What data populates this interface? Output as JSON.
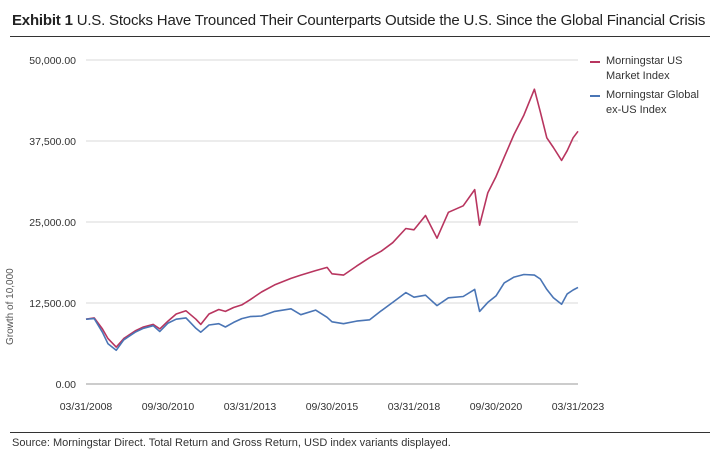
{
  "header": {
    "exhibit_label": "Exhibit 1",
    "title": "U.S. Stocks Have Trounced Their Counterparts Outside the U.S. Since the Global Financial Crisis"
  },
  "footer": {
    "source": "Source: Morningstar Direct. Total Return and Gross Return, USD index variants displayed."
  },
  "chart_data": {
    "type": "line",
    "title": "U.S. Stocks Have Trounced Their Counterparts Outside the U.S. Since the Global Financial Crisis",
    "xlabel": "",
    "ylabel": "Growth of 10,000",
    "ylim": [
      0,
      50000
    ],
    "y_ticks": [
      "50,000.00",
      "37,500.00",
      "25,000.00",
      "12,500.00",
      "0.00"
    ],
    "y_tick_values": [
      50000,
      37500,
      25000,
      12500,
      0
    ],
    "x_ticks": [
      "03/31/2008",
      "09/30/2010",
      "03/31/2013",
      "09/30/2015",
      "03/31/2018",
      "09/30/2020",
      "03/31/2023"
    ],
    "x_tick_values": [
      2008.25,
      2010.75,
      2013.25,
      2015.75,
      2018.25,
      2020.75,
      2023.25
    ],
    "xlim": [
      2008.25,
      2023.25
    ],
    "grid": "horizontal",
    "legend_position": "right",
    "colors": {
      "us": "#b8355f",
      "ex_us": "#4a75b5"
    },
    "series": [
      {
        "name": "Morningstar US Market Index",
        "color": "#b8355f",
        "points": [
          [
            2008.25,
            10000
          ],
          [
            2008.5,
            10200
          ],
          [
            2008.75,
            8500
          ],
          [
            2008.92,
            7000
          ],
          [
            2009.17,
            5700
          ],
          [
            2009.4,
            7000
          ],
          [
            2009.75,
            8200
          ],
          [
            2010.0,
            8800
          ],
          [
            2010.3,
            9200
          ],
          [
            2010.5,
            8500
          ],
          [
            2010.75,
            9700
          ],
          [
            2011.0,
            10800
          ],
          [
            2011.3,
            11300
          ],
          [
            2011.6,
            10000
          ],
          [
            2011.75,
            9200
          ],
          [
            2012.0,
            10800
          ],
          [
            2012.3,
            11500
          ],
          [
            2012.5,
            11200
          ],
          [
            2012.75,
            11800
          ],
          [
            2013.0,
            12200
          ],
          [
            2013.25,
            13000
          ],
          [
            2013.6,
            14200
          ],
          [
            2014.0,
            15300
          ],
          [
            2014.5,
            16300
          ],
          [
            2014.8,
            16800
          ],
          [
            2015.25,
            17500
          ],
          [
            2015.6,
            18000
          ],
          [
            2015.75,
            17000
          ],
          [
            2016.1,
            16800
          ],
          [
            2016.5,
            18200
          ],
          [
            2016.9,
            19500
          ],
          [
            2017.25,
            20500
          ],
          [
            2017.6,
            21800
          ],
          [
            2018.0,
            24000
          ],
          [
            2018.25,
            23800
          ],
          [
            2018.6,
            26000
          ],
          [
            2018.95,
            22500
          ],
          [
            2019.3,
            26500
          ],
          [
            2019.75,
            27500
          ],
          [
            2020.1,
            30000
          ],
          [
            2020.25,
            24500
          ],
          [
            2020.5,
            29500
          ],
          [
            2020.75,
            32000
          ],
          [
            2021.0,
            35000
          ],
          [
            2021.3,
            38500
          ],
          [
            2021.6,
            41500
          ],
          [
            2021.92,
            45500
          ],
          [
            2022.1,
            42000
          ],
          [
            2022.3,
            38000
          ],
          [
            2022.5,
            36500
          ],
          [
            2022.75,
            34500
          ],
          [
            2022.92,
            36000
          ],
          [
            2023.1,
            38000
          ],
          [
            2023.25,
            39000
          ]
        ]
      },
      {
        "name": "Morningstar Global ex-US Index",
        "color": "#4a75b5",
        "points": [
          [
            2008.25,
            10000
          ],
          [
            2008.5,
            10100
          ],
          [
            2008.75,
            8000
          ],
          [
            2008.92,
            6200
          ],
          [
            2009.17,
            5200
          ],
          [
            2009.4,
            6800
          ],
          [
            2009.75,
            8000
          ],
          [
            2010.0,
            8600
          ],
          [
            2010.3,
            9000
          ],
          [
            2010.5,
            8100
          ],
          [
            2010.75,
            9400
          ],
          [
            2011.0,
            10000
          ],
          [
            2011.3,
            10200
          ],
          [
            2011.6,
            8600
          ],
          [
            2011.75,
            8000
          ],
          [
            2012.0,
            9100
          ],
          [
            2012.3,
            9300
          ],
          [
            2012.5,
            8800
          ],
          [
            2012.75,
            9500
          ],
          [
            2013.0,
            10100
          ],
          [
            2013.25,
            10400
          ],
          [
            2013.6,
            10500
          ],
          [
            2014.0,
            11200
          ],
          [
            2014.5,
            11600
          ],
          [
            2014.8,
            10700
          ],
          [
            2015.25,
            11400
          ],
          [
            2015.6,
            10300
          ],
          [
            2015.75,
            9600
          ],
          [
            2016.1,
            9300
          ],
          [
            2016.5,
            9700
          ],
          [
            2016.9,
            9900
          ],
          [
            2017.25,
            11300
          ],
          [
            2017.6,
            12600
          ],
          [
            2018.0,
            14100
          ],
          [
            2018.25,
            13400
          ],
          [
            2018.6,
            13700
          ],
          [
            2018.95,
            12100
          ],
          [
            2019.3,
            13300
          ],
          [
            2019.75,
            13500
          ],
          [
            2020.1,
            14600
          ],
          [
            2020.25,
            11200
          ],
          [
            2020.5,
            12600
          ],
          [
            2020.75,
            13600
          ],
          [
            2021.0,
            15600
          ],
          [
            2021.3,
            16500
          ],
          [
            2021.6,
            16900
          ],
          [
            2021.92,
            16800
          ],
          [
            2022.1,
            16200
          ],
          [
            2022.3,
            14600
          ],
          [
            2022.5,
            13300
          ],
          [
            2022.75,
            12300
          ],
          [
            2022.92,
            13900
          ],
          [
            2023.1,
            14500
          ],
          [
            2023.25,
            14900
          ]
        ]
      }
    ]
  }
}
